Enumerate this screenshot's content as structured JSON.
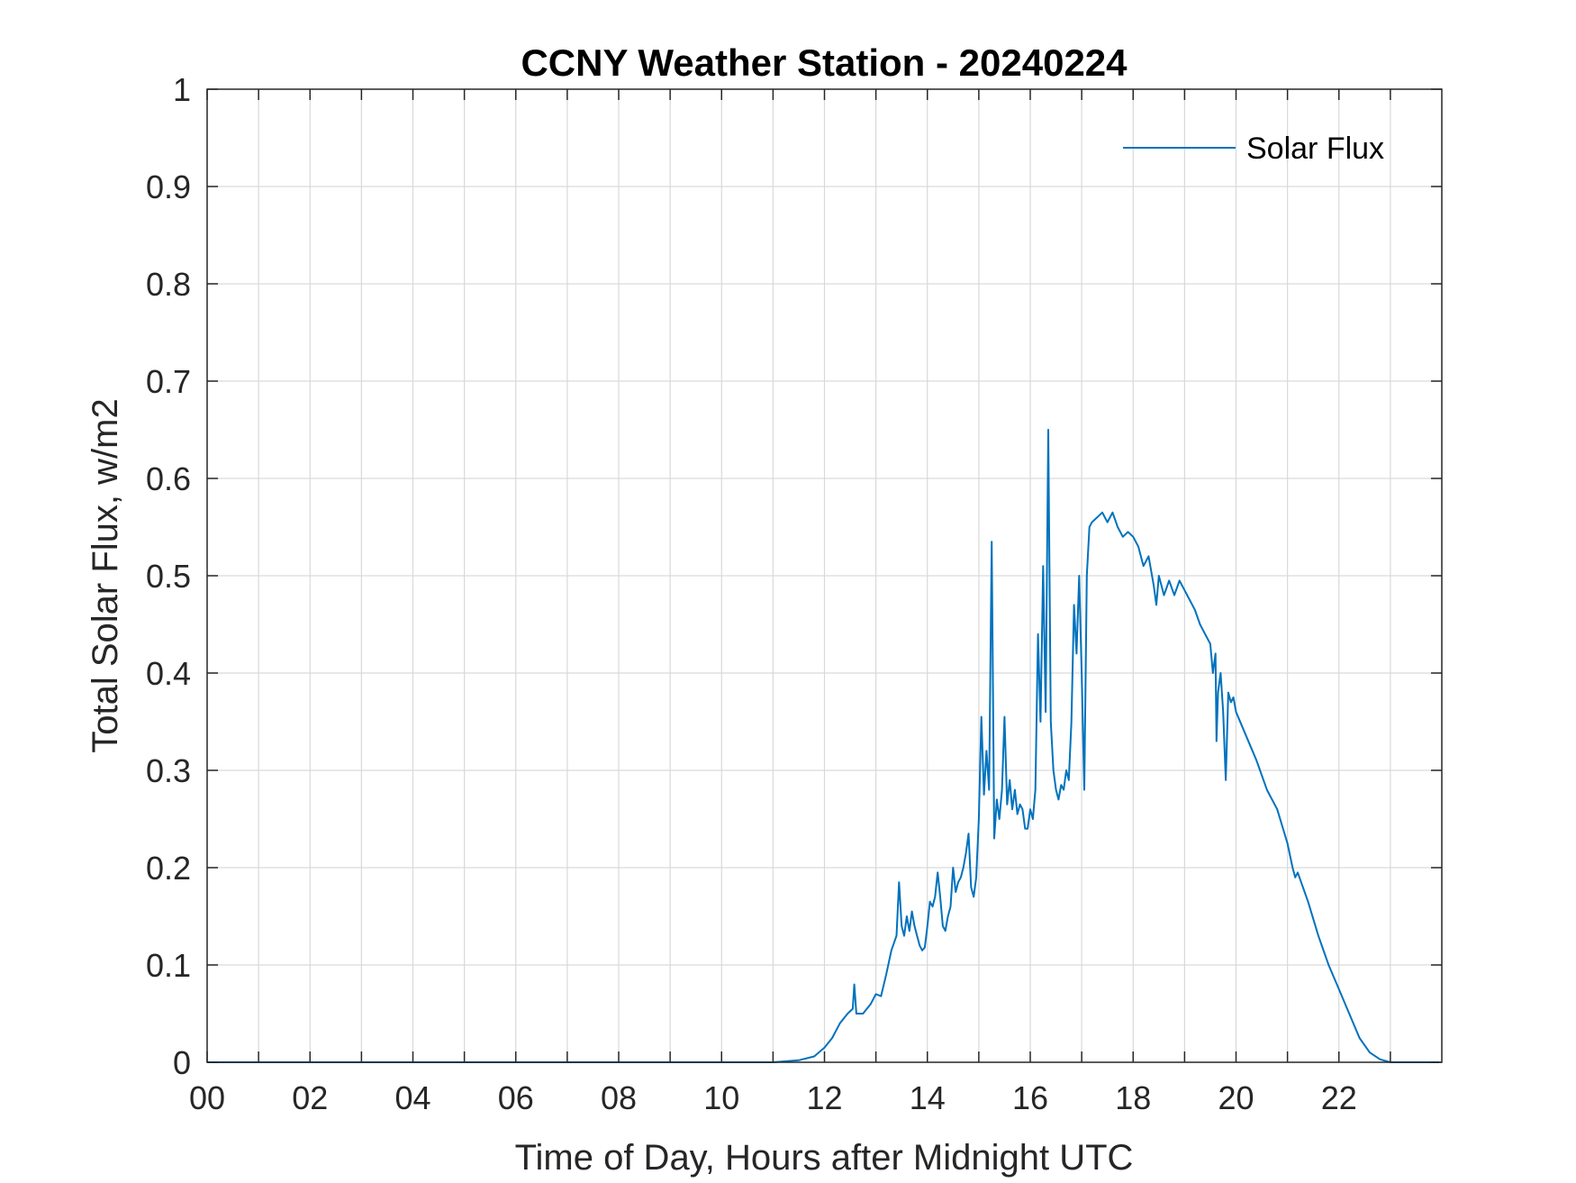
{
  "chart_data": {
    "type": "line",
    "title": "CCNY Weather Station - 20240224",
    "xlabel": "Time of Day, Hours after Midnight UTC",
    "ylabel": "Total Solar Flux, w/m2",
    "xlim": [
      0,
      24
    ],
    "ylim": [
      0,
      1
    ],
    "grid": true,
    "legend_position": "top-right",
    "x_ticks": [
      0,
      2,
      4,
      6,
      8,
      10,
      12,
      14,
      16,
      18,
      20,
      22
    ],
    "x_tick_labels": [
      "00",
      "02",
      "04",
      "06",
      "08",
      "10",
      "12",
      "14",
      "16",
      "18",
      "20",
      "22"
    ],
    "y_ticks": [
      0,
      0.1,
      0.2,
      0.3,
      0.4,
      0.5,
      0.6,
      0.7,
      0.8,
      0.9,
      1
    ],
    "y_tick_labels": [
      "0",
      "0.1",
      "0.2",
      "0.3",
      "0.4",
      "0.5",
      "0.6",
      "0.7",
      "0.8",
      "0.9",
      "1"
    ],
    "series": [
      {
        "name": "Solar Flux",
        "color": "#0072BD",
        "points": [
          [
            0,
            0
          ],
          [
            11.0,
            0
          ],
          [
            11.5,
            0.002
          ],
          [
            11.8,
            0.006
          ],
          [
            12.0,
            0.015
          ],
          [
            12.15,
            0.025
          ],
          [
            12.3,
            0.04
          ],
          [
            12.45,
            0.05
          ],
          [
            12.55,
            0.055
          ],
          [
            12.58,
            0.08
          ],
          [
            12.62,
            0.05
          ],
          [
            12.75,
            0.05
          ],
          [
            12.9,
            0.06
          ],
          [
            13.0,
            0.07
          ],
          [
            13.1,
            0.068
          ],
          [
            13.2,
            0.09
          ],
          [
            13.3,
            0.115
          ],
          [
            13.4,
            0.13
          ],
          [
            13.45,
            0.185
          ],
          [
            13.5,
            0.14
          ],
          [
            13.55,
            0.13
          ],
          [
            13.6,
            0.15
          ],
          [
            13.65,
            0.135
          ],
          [
            13.7,
            0.155
          ],
          [
            13.75,
            0.14
          ],
          [
            13.8,
            0.13
          ],
          [
            13.85,
            0.12
          ],
          [
            13.9,
            0.115
          ],
          [
            13.95,
            0.118
          ],
          [
            14.0,
            0.14
          ],
          [
            14.05,
            0.165
          ],
          [
            14.1,
            0.16
          ],
          [
            14.15,
            0.17
          ],
          [
            14.2,
            0.195
          ],
          [
            14.25,
            0.17
          ],
          [
            14.3,
            0.14
          ],
          [
            14.35,
            0.135
          ],
          [
            14.4,
            0.15
          ],
          [
            14.45,
            0.16
          ],
          [
            14.5,
            0.2
          ],
          [
            14.55,
            0.175
          ],
          [
            14.6,
            0.185
          ],
          [
            14.65,
            0.19
          ],
          [
            14.7,
            0.2
          ],
          [
            14.75,
            0.215
          ],
          [
            14.8,
            0.235
          ],
          [
            14.85,
            0.18
          ],
          [
            14.9,
            0.17
          ],
          [
            14.95,
            0.19
          ],
          [
            15.0,
            0.25
          ],
          [
            15.05,
            0.355
          ],
          [
            15.1,
            0.275
          ],
          [
            15.15,
            0.32
          ],
          [
            15.2,
            0.28
          ],
          [
            15.25,
            0.535
          ],
          [
            15.3,
            0.23
          ],
          [
            15.35,
            0.27
          ],
          [
            15.4,
            0.25
          ],
          [
            15.45,
            0.28
          ],
          [
            15.5,
            0.355
          ],
          [
            15.55,
            0.265
          ],
          [
            15.6,
            0.29
          ],
          [
            15.65,
            0.26
          ],
          [
            15.7,
            0.28
          ],
          [
            15.75,
            0.255
          ],
          [
            15.8,
            0.265
          ],
          [
            15.85,
            0.26
          ],
          [
            15.9,
            0.24
          ],
          [
            15.95,
            0.24
          ],
          [
            16.0,
            0.26
          ],
          [
            16.05,
            0.25
          ],
          [
            16.1,
            0.28
          ],
          [
            16.15,
            0.44
          ],
          [
            16.2,
            0.35
          ],
          [
            16.25,
            0.51
          ],
          [
            16.3,
            0.36
          ],
          [
            16.35,
            0.65
          ],
          [
            16.4,
            0.35
          ],
          [
            16.45,
            0.3
          ],
          [
            16.5,
            0.28
          ],
          [
            16.55,
            0.27
          ],
          [
            16.6,
            0.285
          ],
          [
            16.65,
            0.28
          ],
          [
            16.7,
            0.3
          ],
          [
            16.75,
            0.29
          ],
          [
            16.8,
            0.35
          ],
          [
            16.85,
            0.47
          ],
          [
            16.9,
            0.42
          ],
          [
            16.95,
            0.5
          ],
          [
            17.0,
            0.4
          ],
          [
            17.05,
            0.28
          ],
          [
            17.1,
            0.5
          ],
          [
            17.15,
            0.55
          ],
          [
            17.2,
            0.555
          ],
          [
            17.3,
            0.56
          ],
          [
            17.4,
            0.565
          ],
          [
            17.5,
            0.555
          ],
          [
            17.6,
            0.565
          ],
          [
            17.7,
            0.55
          ],
          [
            17.8,
            0.54
          ],
          [
            17.9,
            0.545
          ],
          [
            18.0,
            0.54
          ],
          [
            18.1,
            0.53
          ],
          [
            18.2,
            0.51
          ],
          [
            18.3,
            0.52
          ],
          [
            18.4,
            0.49
          ],
          [
            18.45,
            0.47
          ],
          [
            18.5,
            0.5
          ],
          [
            18.6,
            0.48
          ],
          [
            18.7,
            0.495
          ],
          [
            18.8,
            0.48
          ],
          [
            18.9,
            0.495
          ],
          [
            19.0,
            0.485
          ],
          [
            19.1,
            0.475
          ],
          [
            19.2,
            0.465
          ],
          [
            19.3,
            0.45
          ],
          [
            19.4,
            0.44
          ],
          [
            19.5,
            0.43
          ],
          [
            19.55,
            0.4
          ],
          [
            19.6,
            0.42
          ],
          [
            19.62,
            0.33
          ],
          [
            19.65,
            0.38
          ],
          [
            19.7,
            0.4
          ],
          [
            19.75,
            0.36
          ],
          [
            19.8,
            0.29
          ],
          [
            19.85,
            0.38
          ],
          [
            19.9,
            0.37
          ],
          [
            19.95,
            0.375
          ],
          [
            20.0,
            0.36
          ],
          [
            20.2,
            0.335
          ],
          [
            20.4,
            0.31
          ],
          [
            20.6,
            0.28
          ],
          [
            20.8,
            0.26
          ],
          [
            21.0,
            0.225
          ],
          [
            21.1,
            0.2
          ],
          [
            21.15,
            0.19
          ],
          [
            21.2,
            0.195
          ],
          [
            21.4,
            0.165
          ],
          [
            21.6,
            0.13
          ],
          [
            21.8,
            0.1
          ],
          [
            22.0,
            0.075
          ],
          [
            22.2,
            0.05
          ],
          [
            22.4,
            0.025
          ],
          [
            22.6,
            0.01
          ],
          [
            22.8,
            0.003
          ],
          [
            23.0,
            0
          ],
          [
            23.95,
            0
          ]
        ]
      }
    ]
  }
}
